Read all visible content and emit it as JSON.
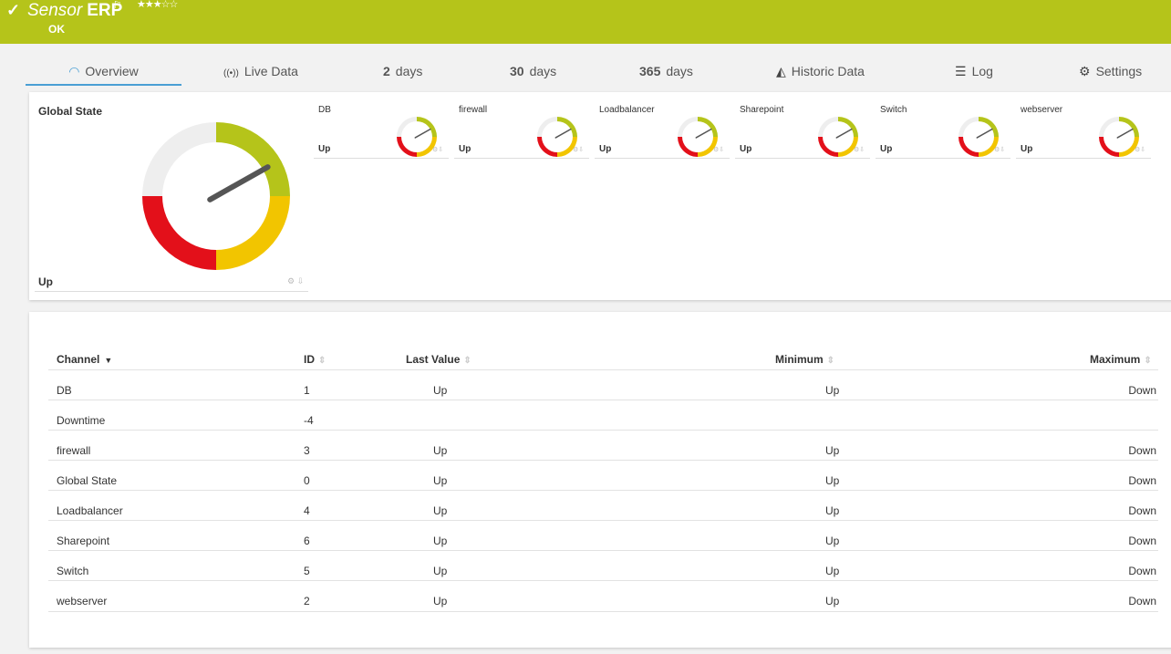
{
  "header": {
    "sensor_type": "Sensor",
    "sensor_name": "ERP",
    "stars": "★★★☆☆",
    "status": "OK",
    "check_icon": "check-icon",
    "flag_icon": "flag-icon",
    "background_color": "#b5c41a"
  },
  "tabs": [
    {
      "label": "Overview",
      "icon": "gauge-icon"
    },
    {
      "label": "Live Data",
      "icon": "broadcast-icon"
    },
    {
      "number": "2",
      "label": "days"
    },
    {
      "number": "30",
      "label": "days"
    },
    {
      "number": "365",
      "label": "days"
    },
    {
      "label": "Historic Data",
      "icon": "area-chart-icon"
    },
    {
      "label": "Log",
      "icon": "list-icon"
    },
    {
      "label": "Settings",
      "icon": "gear-icon"
    }
  ],
  "main_gauge": {
    "title": "Global State",
    "value": "Up",
    "needle_fraction": 0.84
  },
  "channel_gauges": [
    {
      "name": "DB",
      "value": "Up",
      "needle_fraction": 0.84
    },
    {
      "name": "firewall",
      "value": "Up",
      "needle_fraction": 0.84
    },
    {
      "name": "Loadbalancer",
      "value": "Up",
      "needle_fraction": 0.84
    },
    {
      "name": "Sharepoint",
      "value": "Up",
      "needle_fraction": 0.84
    },
    {
      "name": "Switch",
      "value": "Up",
      "needle_fraction": 0.84
    },
    {
      "name": "webserver",
      "value": "Up",
      "needle_fraction": 0.84
    }
  ],
  "gauge_colors": {
    "green": "#b5c41a",
    "yellow": "#f2c500",
    "red": "#e3101a",
    "neutral": "#eeeeee",
    "needle": "#555555"
  },
  "table": {
    "headers": {
      "channel": "Channel",
      "id": "ID",
      "last_value": "Last Value",
      "minimum": "Minimum",
      "maximum": "Maximum"
    },
    "rows": [
      {
        "channel": "DB",
        "id": "1",
        "last": "Up",
        "min": "Up",
        "max": "Down"
      },
      {
        "channel": "Downtime",
        "id": "-4",
        "last": "",
        "min": "",
        "max": ""
      },
      {
        "channel": "firewall",
        "id": "3",
        "last": "Up",
        "min": "Up",
        "max": "Down"
      },
      {
        "channel": "Global State",
        "id": "0",
        "last": "Up",
        "min": "Up",
        "max": "Down"
      },
      {
        "channel": "Loadbalancer",
        "id": "4",
        "last": "Up",
        "min": "Up",
        "max": "Down"
      },
      {
        "channel": "Sharepoint",
        "id": "6",
        "last": "Up",
        "min": "Up",
        "max": "Down"
      },
      {
        "channel": "Switch",
        "id": "5",
        "last": "Up",
        "min": "Up",
        "max": "Down"
      },
      {
        "channel": "webserver",
        "id": "2",
        "last": "Up",
        "min": "Up",
        "max": "Down"
      }
    ]
  }
}
